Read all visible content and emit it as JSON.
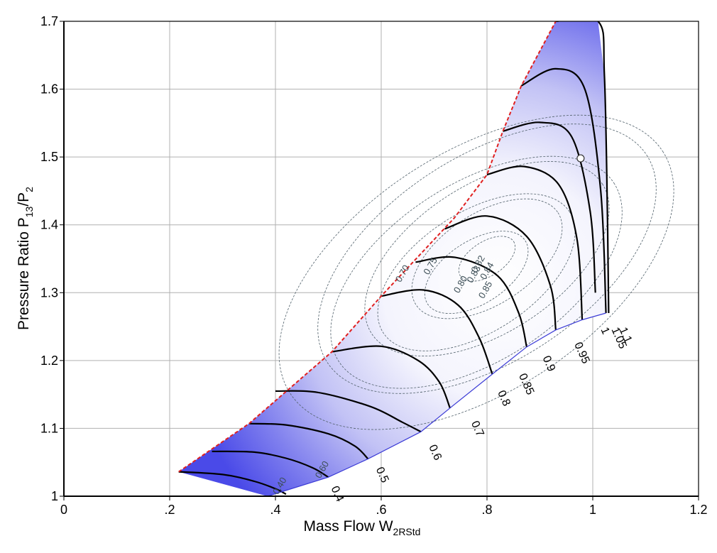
{
  "chart_data": {
    "type": "line",
    "subtype": "compressor-map",
    "xlabel": {
      "main": "Mass Flow W",
      "sub": "2RStd"
    },
    "ylabel": {
      "main": "Pressure Ratio P",
      "sub1": "13",
      "mid": "/P",
      "sub2": "2"
    },
    "xlim": [
      0,
      1.2
    ],
    "ylim": [
      1.0,
      1.7
    ],
    "x_ticks": [
      {
        "v": 0,
        "label": "0"
      },
      {
        "v": 0.2,
        "label": ".2"
      },
      {
        "v": 0.4,
        "label": ".4"
      },
      {
        "v": 0.6,
        "label": ".6"
      },
      {
        "v": 0.8,
        "label": ".8"
      },
      {
        "v": 1.0,
        "label": "1"
      },
      {
        "v": 1.2,
        "label": "1.2"
      }
    ],
    "y_ticks": [
      {
        "v": 1.0,
        "label": "1"
      },
      {
        "v": 1.1,
        "label": "1.1"
      },
      {
        "v": 1.2,
        "label": "1.2"
      },
      {
        "v": 1.3,
        "label": "1.3"
      },
      {
        "v": 1.4,
        "label": "1.4"
      },
      {
        "v": 1.5,
        "label": "1.5"
      },
      {
        "v": 1.6,
        "label": "1.6"
      },
      {
        "v": 1.7,
        "label": "1.7"
      }
    ],
    "grid": true,
    "surge_line": {
      "color": "#e02020",
      "points": [
        [
          0.217,
          1.036
        ],
        [
          0.35,
          1.107
        ],
        [
          0.507,
          1.213
        ],
        [
          0.6,
          1.295
        ],
        [
          0.738,
          1.41
        ],
        [
          0.8,
          1.474
        ],
        [
          0.83,
          1.538
        ],
        [
          0.865,
          1.605
        ],
        [
          0.93,
          1.7
        ]
      ]
    },
    "choke_line": {
      "points": [
        [
          0.385,
          1.0
        ],
        [
          0.5,
          1.028
        ],
        [
          0.575,
          1.055
        ],
        [
          0.675,
          1.095
        ],
        [
          0.73,
          1.13
        ],
        [
          0.81,
          1.18
        ],
        [
          0.875,
          1.22
        ],
        [
          0.93,
          1.245
        ],
        [
          0.98,
          1.26
        ],
        [
          1.025,
          1.27
        ]
      ]
    },
    "speed_lines": [
      {
        "label": "0.4",
        "label_at": [
          0.505,
          1.012
        ],
        "points": [
          [
            0.217,
            1.036
          ],
          [
            0.3,
            1.032
          ],
          [
            0.36,
            1.022
          ],
          [
            0.4,
            1.011
          ],
          [
            0.42,
            1.003
          ]
        ]
      },
      {
        "label": "0.5",
        "label_at": [
          0.59,
          1.04
        ],
        "points": [
          [
            0.28,
            1.066
          ],
          [
            0.36,
            1.065
          ],
          [
            0.42,
            1.056
          ],
          [
            0.47,
            1.042
          ],
          [
            0.5,
            1.028
          ]
        ]
      },
      {
        "label": "0.6",
        "label_at": [
          0.69,
          1.073
        ],
        "points": [
          [
            0.35,
            1.107
          ],
          [
            0.42,
            1.105
          ],
          [
            0.5,
            1.092
          ],
          [
            0.55,
            1.074
          ],
          [
            0.575,
            1.055
          ]
        ]
      },
      {
        "label": "0.7",
        "label_at": [
          0.77,
          1.108
        ],
        "points": [
          [
            0.4,
            1.155
          ],
          [
            0.48,
            1.153
          ],
          [
            0.58,
            1.132
          ],
          [
            0.64,
            1.109
          ],
          [
            0.675,
            1.095
          ]
        ]
      },
      {
        "label": "0.8",
        "label_at": [
          0.82,
          1.153
        ],
        "points": [
          [
            0.507,
            1.213
          ],
          [
            0.6,
            1.221
          ],
          [
            0.67,
            1.2
          ],
          [
            0.71,
            1.168
          ],
          [
            0.73,
            1.13
          ]
        ]
      },
      {
        "label": "0.85",
        "label_at": [
          0.86,
          1.178
        ],
        "points": [
          [
            0.6,
            1.295
          ],
          [
            0.68,
            1.304
          ],
          [
            0.745,
            1.282
          ],
          [
            0.785,
            1.234
          ],
          [
            0.81,
            1.18
          ]
        ]
      },
      {
        "label": "0.9",
        "label_at": [
          0.905,
          1.204
        ],
        "points": [
          [
            0.665,
            1.345
          ],
          [
            0.74,
            1.352
          ],
          [
            0.82,
            1.325
          ],
          [
            0.86,
            1.27
          ],
          [
            0.875,
            1.22
          ]
        ]
      },
      {
        "label": "0.95",
        "label_at": [
          0.965,
          1.224
        ],
        "points": [
          [
            0.72,
            1.394
          ],
          [
            0.8,
            1.413
          ],
          [
            0.875,
            1.383
          ],
          [
            0.92,
            1.31
          ],
          [
            0.93,
            1.245
          ]
        ]
      },
      {
        "label": "1",
        "label_at": [
          1.015,
          1.246
        ],
        "points": [
          [
            0.8,
            1.474
          ],
          [
            0.87,
            1.486
          ],
          [
            0.935,
            1.46
          ],
          [
            0.97,
            1.38
          ],
          [
            0.98,
            1.26
          ]
        ]
      },
      {
        "label": "1.05",
        "label_at": [
          1.035,
          1.246
        ],
        "points": [
          [
            0.83,
            1.538
          ],
          [
            0.9,
            1.551
          ],
          [
            0.96,
            1.53
          ],
          [
            0.995,
            1.42
          ],
          [
            1.005,
            1.3
          ]
        ]
      },
      {
        "label": "1.1",
        "label_at": [
          1.05,
          1.246
        ],
        "points": [
          [
            0.865,
            1.605
          ],
          [
            0.93,
            1.63
          ],
          [
            0.985,
            1.6
          ],
          [
            1.015,
            1.45
          ],
          [
            1.025,
            1.27
          ]
        ]
      },
      {
        "label": "",
        "label_at": null,
        "points": [
          [
            0.93,
            1.7
          ],
          [
            1.01,
            1.7
          ],
          [
            1.022,
            1.62
          ],
          [
            1.028,
            1.4
          ],
          [
            1.03,
            1.27
          ]
        ]
      }
    ],
    "efficiency_labels": [
      {
        "label": "0.40",
        "at": [
          0.413,
          1.013
        ]
      },
      {
        "label": "0.60",
        "at": [
          0.493,
          1.037
        ]
      },
      {
        "label": "0.70",
        "at": [
          0.645,
          1.326
        ]
      },
      {
        "label": "0.75",
        "at": [
          0.698,
          1.337
        ]
      },
      {
        "label": "0.80",
        "at": [
          0.755,
          1.31
        ]
      },
      {
        "label": "0.82",
        "at": [
          0.788,
          1.34
        ]
      },
      {
        "label": "0.83",
        "at": [
          0.78,
          1.325
        ]
      },
      {
        "label": "0.84",
        "at": [
          0.805,
          1.33
        ]
      },
      {
        "label": "0.85",
        "at": [
          0.802,
          1.302
        ]
      }
    ],
    "operating_point": [
      0.977,
      1.498
    ],
    "colors": {
      "fill_edge": "#4a4ae8",
      "fill_center": "#ffffff",
      "speed_line": "#000000",
      "efficiency_contour": "#50606a",
      "grid": "#b0b0b0"
    }
  }
}
